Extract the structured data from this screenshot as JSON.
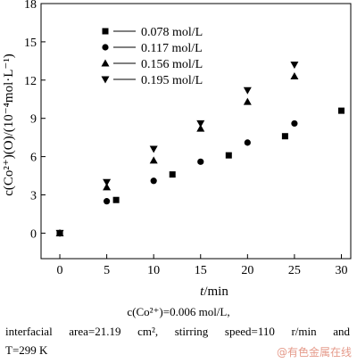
{
  "chart_data": {
    "type": "scatter",
    "xlabel_italic": "t",
    "xlabel_rest": "/min",
    "ylabel": "c(Co²⁺)(O)/(10⁻⁴mol·L⁻¹)",
    "xlim": [
      -2,
      31
    ],
    "ylim": [
      -2,
      18
    ],
    "xticks": [
      0,
      5,
      10,
      15,
      20,
      25,
      30
    ],
    "yticks": [
      0,
      3,
      6,
      9,
      12,
      15,
      18
    ],
    "legend_position": "top-left",
    "series": [
      {
        "name": "0.078 mol/L",
        "marker": "square",
        "x": [
          0,
          6,
          12,
          18,
          24,
          30
        ],
        "y": [
          0,
          2.6,
          4.6,
          6.1,
          7.6,
          9.6
        ]
      },
      {
        "name": "0.117 mol/L",
        "marker": "circle",
        "x": [
          0,
          5,
          10,
          15,
          20,
          25
        ],
        "y": [
          0,
          2.5,
          4.1,
          5.6,
          7.1,
          8.6
        ]
      },
      {
        "name": "0.156 mol/L",
        "marker": "triangle-up",
        "x": [
          0,
          5,
          10,
          15,
          20,
          25
        ],
        "y": [
          0,
          3.6,
          5.7,
          8.2,
          10.3,
          12.3
        ]
      },
      {
        "name": "0.195 mol/L",
        "marker": "triangle-down",
        "x": [
          0,
          5,
          10,
          15,
          20,
          25
        ],
        "y": [
          0,
          4.0,
          6.6,
          8.6,
          11.2,
          13.2
        ]
      }
    ]
  },
  "caption": {
    "line1": "c(Co²⁺)=0.006    mol/L,",
    "line2": "interfacial area=21.19 cm², stirring speed=110 r/min and",
    "line3": "T=299 K"
  },
  "watermark": "@有色金属在线"
}
